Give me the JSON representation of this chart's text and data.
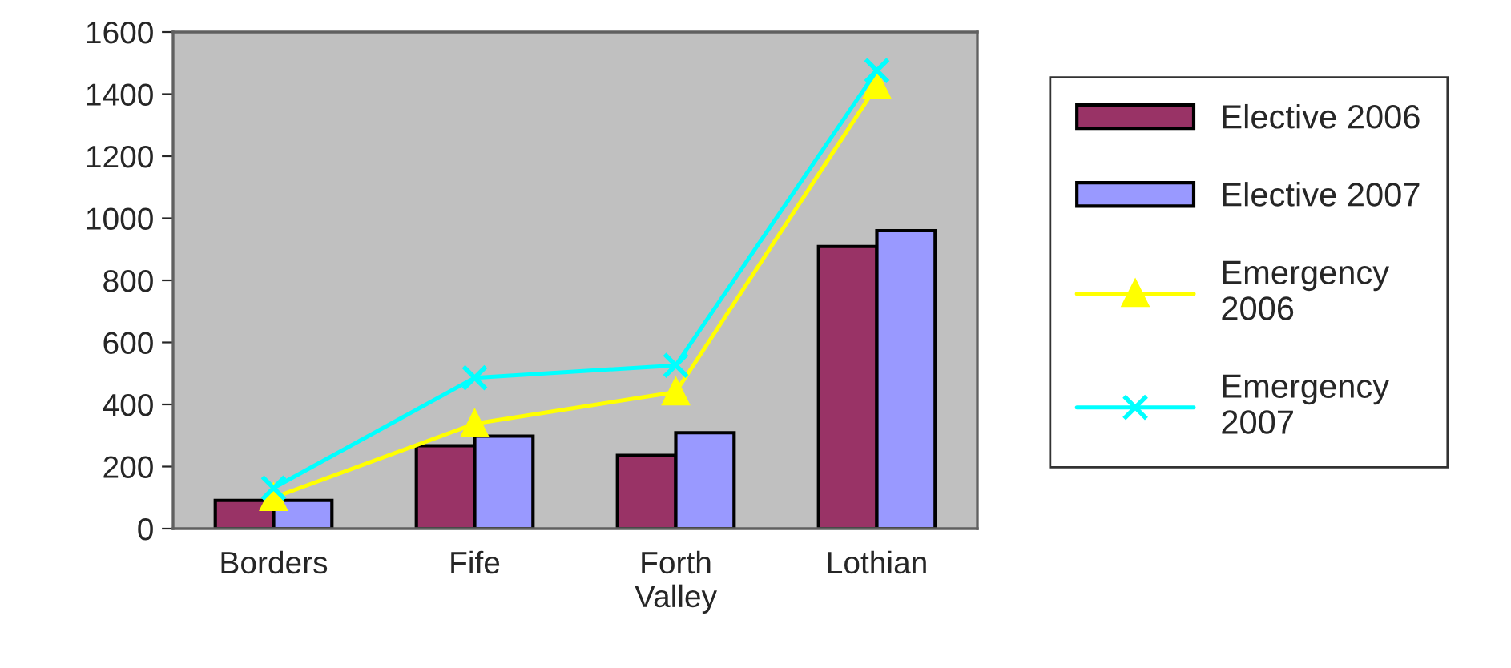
{
  "chart_data": {
    "type": "bar",
    "categories": [
      "Borders",
      "Fife",
      "Forth\nValley",
      "Lothian"
    ],
    "series": [
      {
        "name": "Elective 2006",
        "color": "#993366",
        "values": [
          91,
          267,
          236,
          909
        ]
      },
      {
        "name": "Elective 2007",
        "color": "#9999ff",
        "values": [
          91,
          298,
          309,
          960
        ]
      },
      {
        "name": "Emergency\n2006",
        "type": "line",
        "color": "#ffff00",
        "marker": "triangle",
        "values": [
          100,
          338,
          440,
          1428
        ]
      },
      {
        "name": "Emergency\n2007",
        "type": "line",
        "color": "#00ffff",
        "marker": "cross",
        "values": [
          131,
          486,
          526,
          1476
        ]
      }
    ],
    "ylim": [
      0,
      1600
    ],
    "yticks": [
      0,
      200,
      400,
      600,
      800,
      1000,
      1200,
      1400,
      1600
    ],
    "grid": false,
    "legend": "right"
  }
}
